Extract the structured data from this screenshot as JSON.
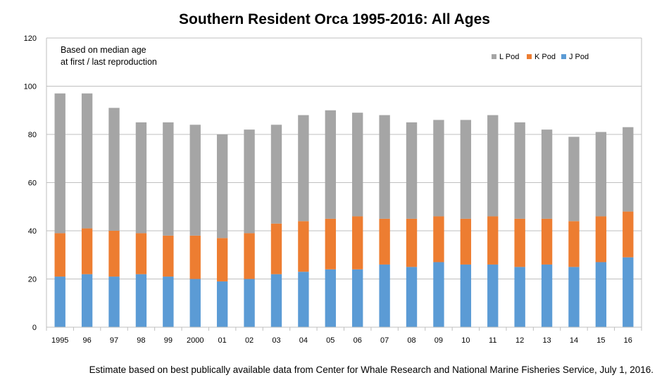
{
  "chart_data": {
    "type": "bar",
    "stacked": true,
    "title": "Southern Resident Orca 1995-2016: All Ages",
    "annotation_lines": [
      "Based on median age",
      "at first / last reproduction"
    ],
    "footnote": "Estimate based on best publically available data from Center for Whale Research and National Marine Fisheries Service, July 1, 2016.",
    "categories": [
      "1995",
      "96",
      "97",
      "98",
      "99",
      "2000",
      "01",
      "02",
      "03",
      "04",
      "05",
      "06",
      "07",
      "08",
      "09",
      "10",
      "11",
      "12",
      "13",
      "14",
      "15",
      "16"
    ],
    "series": [
      {
        "name": "J Pod",
        "color": "#5b9bd5",
        "values": [
          21,
          22,
          21,
          22,
          21,
          20,
          19,
          20,
          22,
          23,
          24,
          24,
          26,
          25,
          27,
          26,
          26,
          25,
          26,
          25,
          27,
          29
        ]
      },
      {
        "name": "K Pod",
        "color": "#ed7d31",
        "values": [
          18,
          19,
          19,
          17,
          17,
          18,
          18,
          19,
          21,
          21,
          21,
          22,
          19,
          20,
          19,
          19,
          20,
          20,
          19,
          19,
          19,
          19
        ]
      },
      {
        "name": "L Pod",
        "color": "#a5a5a5",
        "values": [
          58,
          56,
          51,
          46,
          47,
          46,
          43,
          43,
          41,
          44,
          45,
          43,
          43,
          40,
          40,
          41,
          42,
          40,
          37,
          35,
          35,
          35
        ]
      }
    ],
    "legend_order": [
      "L Pod",
      "K Pod",
      "J Pod"
    ],
    "legend_position": "top-right",
    "ylim": [
      0,
      120
    ],
    "yticks": [
      0,
      20,
      40,
      60,
      80,
      100,
      120
    ],
    "grid": true
  }
}
